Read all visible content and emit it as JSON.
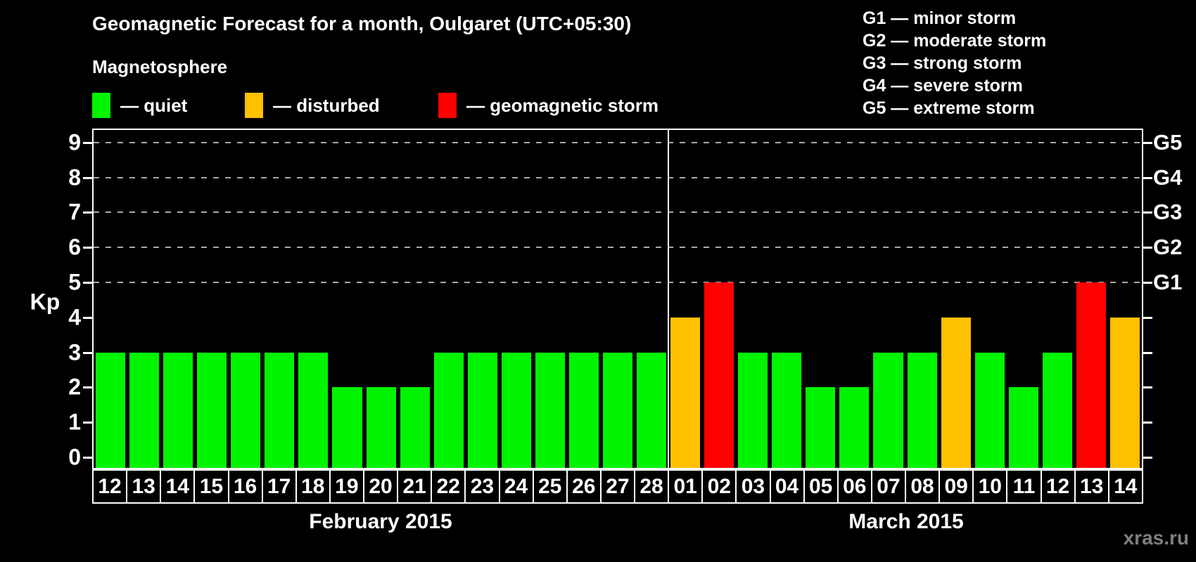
{
  "header": {
    "title": "Geomagnetic Forecast for a month, Oulgaret (UTC+05:30)"
  },
  "magnetosphere_legend": {
    "title": "Magnetosphere",
    "items": [
      {
        "name": "quiet",
        "label": "— quiet",
        "color": "#00f400"
      },
      {
        "name": "disturbed",
        "label": "— disturbed",
        "color": "#ffc000"
      },
      {
        "name": "storm",
        "label": "— geomagnetic storm",
        "color": "#ff0000"
      }
    ]
  },
  "storm_scale_legend": {
    "items": [
      {
        "label": "G1 — minor storm"
      },
      {
        "label": "G2 — moderate storm"
      },
      {
        "label": "G3 — strong storm"
      },
      {
        "label": "G4 — severe storm"
      },
      {
        "label": "G5 — extreme storm"
      }
    ]
  },
  "chart_data": {
    "type": "bar",
    "title": "Geomagnetic Forecast for a month, Oulgaret (UTC+05:30)",
    "ylabel": "Kp",
    "ylim": [
      0,
      9
    ],
    "yticks": [
      0,
      1,
      2,
      3,
      4,
      5,
      6,
      7,
      8,
      9
    ],
    "gridline_values": [
      5,
      6,
      7,
      8,
      9
    ],
    "grid_style": "dashed",
    "right_axis_labels": [
      {
        "value": 5,
        "label": "G1"
      },
      {
        "value": 6,
        "label": "G2"
      },
      {
        "value": 7,
        "label": "G3"
      },
      {
        "value": 8,
        "label": "G4"
      },
      {
        "value": 9,
        "label": "G5"
      }
    ],
    "status_rule": {
      "quiet_max": 3,
      "disturbed_max": 4
    },
    "colors": {
      "quiet": "#00f400",
      "disturbed": "#ffc000",
      "storm": "#ff0000"
    },
    "months": [
      {
        "label": "February 2015",
        "days": [
          "12",
          "13",
          "14",
          "15",
          "16",
          "17",
          "18",
          "19",
          "20",
          "21",
          "22",
          "23",
          "24",
          "25",
          "26",
          "27",
          "28"
        ],
        "values": [
          3,
          3,
          3,
          3,
          3,
          3,
          3,
          2,
          2,
          2,
          3,
          3,
          3,
          3,
          3,
          3,
          3
        ]
      },
      {
        "label": "March 2015",
        "days": [
          "01",
          "02",
          "03",
          "04",
          "05",
          "06",
          "07",
          "08",
          "09",
          "10",
          "11",
          "12",
          "13",
          "14"
        ],
        "values": [
          4,
          5,
          3,
          3,
          2,
          2,
          3,
          3,
          4,
          3,
          2,
          3,
          5,
          4
        ]
      }
    ]
  },
  "watermark": "xras.ru"
}
